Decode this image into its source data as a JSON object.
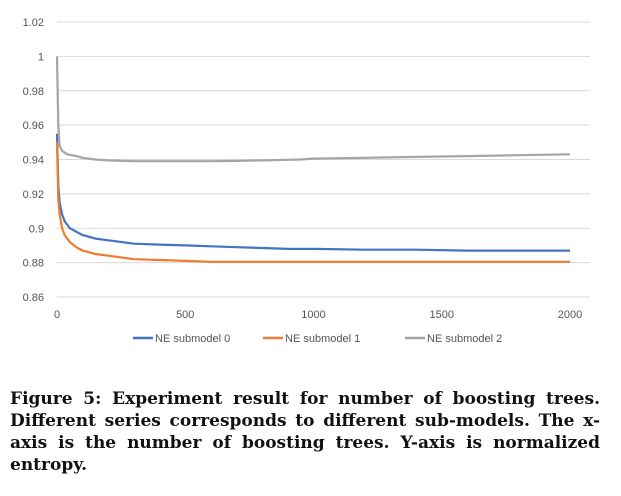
{
  "chart_data": {
    "type": "line",
    "title": "",
    "xlabel": "",
    "ylabel": "",
    "xlim": [
      0,
      2000
    ],
    "ylim": [
      0.86,
      1.02
    ],
    "x_ticks": [
      "0",
      "500",
      "1000",
      "1500",
      "2000"
    ],
    "x_tick_values": [
      0,
      500,
      1000,
      1500,
      2000
    ],
    "y_ticks": [
      "0.86",
      "0.88",
      "0.9",
      "0.92",
      "0.94",
      "0.96",
      "0.98",
      "1",
      "1.02"
    ],
    "y_tick_values": [
      0.86,
      0.88,
      0.9,
      0.92,
      0.94,
      0.96,
      0.98,
      1.0,
      1.02
    ],
    "grid": "horizontal",
    "legend_position": "bottom",
    "series": [
      {
        "name": "NE submodel 0",
        "color": "#4472c4",
        "x": [
          0,
          5,
          10,
          20,
          30,
          50,
          75,
          100,
          150,
          200,
          300,
          400,
          500,
          600,
          700,
          800,
          900,
          1000,
          1200,
          1400,
          1600,
          1800,
          2000
        ],
        "y": [
          0.955,
          0.925,
          0.915,
          0.908,
          0.904,
          0.9,
          0.898,
          0.896,
          0.894,
          0.893,
          0.891,
          0.8905,
          0.89,
          0.8895,
          0.889,
          0.8885,
          0.888,
          0.888,
          0.8875,
          0.8875,
          0.887,
          0.887,
          0.887
        ]
      },
      {
        "name": "NE submodel 1",
        "color": "#ed7d31",
        "x": [
          0,
          5,
          10,
          20,
          30,
          50,
          75,
          100,
          150,
          200,
          300,
          400,
          500,
          600,
          700,
          800,
          900,
          1000,
          1200,
          1400,
          1600,
          1800,
          2000
        ],
        "y": [
          0.95,
          0.917,
          0.908,
          0.9,
          0.896,
          0.892,
          0.889,
          0.887,
          0.885,
          0.884,
          0.882,
          0.8815,
          0.881,
          0.8805,
          0.8805,
          0.8805,
          0.8805,
          0.8805,
          0.8805,
          0.8805,
          0.8805,
          0.8805,
          0.8805
        ]
      },
      {
        "name": "NE submodel 2",
        "color": "#a5a5a5",
        "x": [
          0,
          5,
          10,
          20,
          40,
          75,
          100,
          150,
          200,
          300,
          400,
          500,
          600,
          700,
          800,
          900,
          950,
          1000,
          1200,
          1400,
          1600,
          1800,
          2000
        ],
        "y": [
          1.0,
          0.96,
          0.948,
          0.945,
          0.943,
          0.942,
          0.941,
          0.94,
          0.9395,
          0.939,
          0.939,
          0.939,
          0.939,
          0.9392,
          0.9395,
          0.9398,
          0.94,
          0.9405,
          0.941,
          0.9415,
          0.942,
          0.9425,
          0.943
        ]
      }
    ]
  },
  "caption": {
    "text": "Figure 5: Experiment result for number of boosting trees. Different series corresponds to different sub-models. The x-axis is the number of boosting trees. Y-axis is normalized entropy."
  }
}
